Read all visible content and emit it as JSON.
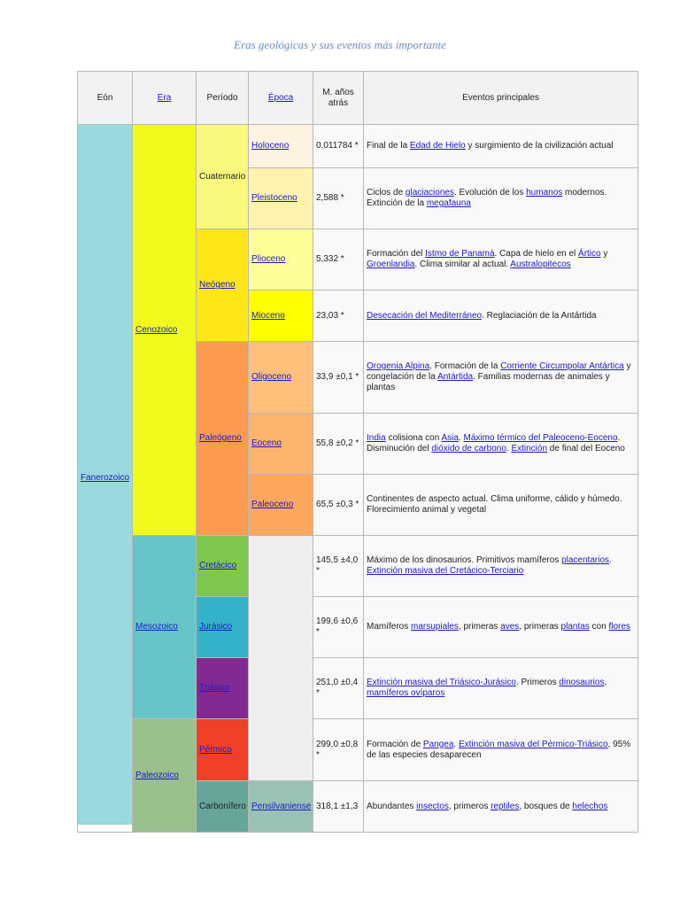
{
  "title": "Eras geológicas y sus eventos más importante",
  "header": [
    {
      "text": "Eón"
    },
    {
      "text": "Era",
      "link": true
    },
    {
      "text": "Período"
    },
    {
      "text": "Época",
      "link": true
    },
    {
      "text": "M. años atrás"
    },
    {
      "text": "Eventos principales"
    }
  ],
  "eon": {
    "name": "Fanerozoico",
    "link": true,
    "color": "#9ad9dd"
  },
  "eras": [
    {
      "name": "Cenozoico",
      "link": true,
      "color": "#f2f91d"
    },
    {
      "name": "Mesozoico",
      "link": true,
      "color": "#67c5ca"
    },
    {
      "name": "Paleozoico",
      "link": true,
      "color": "#99c08d"
    }
  ],
  "periods": [
    {
      "name": "Cuaternario",
      "color": "#f9f97f"
    },
    {
      "name": "Neógeno",
      "link": true,
      "color": "#ffe619"
    },
    {
      "name": "Paleógeno",
      "link": true,
      "color": "#fd9a52"
    },
    {
      "name": "Cretácico",
      "link": true,
      "color": "#7fc64e"
    },
    {
      "name": "Jurásico",
      "link": true,
      "color": "#34b2c9"
    },
    {
      "name": "Triásico",
      "link": true,
      "color": "#812b92"
    },
    {
      "name": "Pérmico",
      "link": true,
      "color": "#f04028"
    },
    {
      "name": "Carbonífero",
      "color": "#67a599"
    }
  ],
  "epochs": [
    {
      "name": "Holoceno",
      "link": true,
      "color": "#fef2e0"
    },
    {
      "name": "Pleistoceno",
      "link": true,
      "color": "#fff2ae"
    },
    {
      "name": "Plioceno",
      "link": true,
      "color": "#ffff99"
    },
    {
      "name": "Mioceno",
      "link": true,
      "color": "#ffff00"
    },
    {
      "name": "Oligoceno",
      "link": true,
      "color": "#fec07a"
    },
    {
      "name": "Eoceno",
      "link": true,
      "color": "#fdb46c"
    },
    {
      "name": "Paleoceno",
      "link": true,
      "color": "#fda75f"
    },
    {
      "name": "Pensilvaniense",
      "link": true,
      "color": "#99c2b5"
    }
  ],
  "rows": [
    {
      "age": "0,011784 *",
      "events": [
        {
          "t": "Final de la "
        },
        {
          "a": "Edad de Hielo"
        },
        {
          "t": " y surgimiento de la civilización actual"
        }
      ]
    },
    {
      "age": "2,588 *",
      "events": [
        {
          "t": "Ciclos de "
        },
        {
          "a": "glaciaciones"
        },
        {
          "t": ". Evolución de los "
        },
        {
          "a": "humanos"
        },
        {
          "t": " modernos. Extinción de la "
        },
        {
          "a": "megafauna"
        }
      ]
    },
    {
      "age": "5,332 *",
      "events": [
        {
          "t": "Formación del "
        },
        {
          "a": "Istmo de Panamá"
        },
        {
          "t": ". Capa de hielo en el "
        },
        {
          "a": "Ártico"
        },
        {
          "t": " y "
        },
        {
          "a": "Groenlandia"
        },
        {
          "t": ". Clima similar al actual. "
        },
        {
          "a": "Australopitecos"
        }
      ]
    },
    {
      "age": "23,03 *",
      "events": [
        {
          "a": "Desecación del Mediterráneo"
        },
        {
          "t": ". Reglaciación de la Antártida"
        }
      ]
    },
    {
      "age": "33,9 ±0,1 *",
      "events": [
        {
          "a": "Orogenia Alpina"
        },
        {
          "t": ". Formación de la "
        },
        {
          "a": "Corriente Circumpolar Antártica"
        },
        {
          "t": " y congelación de la "
        },
        {
          "a": "Antártida"
        },
        {
          "t": ". Familias modernas de animales y plantas"
        }
      ]
    },
    {
      "age": "55,8 ±0,2 *",
      "events": [
        {
          "a": "India"
        },
        {
          "t": " colisiona con "
        },
        {
          "a": "Asia"
        },
        {
          "t": ". "
        },
        {
          "a": "Máximo térmico del Paleoceno-Eoceno"
        },
        {
          "t": ". Disminución del "
        },
        {
          "a": "dióxido de carbono"
        },
        {
          "t": ". "
        },
        {
          "a": "Extinción"
        },
        {
          "t": " de final del Eoceno"
        }
      ]
    },
    {
      "age": "65,5 ±0,3 *",
      "events": [
        {
          "t": "Continentes de aspecto actual. Clima uniforme, cálido y húmedo. Florecimiento animal y vegetal"
        }
      ]
    },
    {
      "age": "145,5 ±4,0 *",
      "events": [
        {
          "t": "Máximo de los dinosaurios. Primitivos mamíferos "
        },
        {
          "a": "placentarios"
        },
        {
          "t": ". "
        },
        {
          "a": "Extinción masiva del Cretácico-Terciario"
        }
      ]
    },
    {
      "age": "199,6 ±0,6 *",
      "events": [
        {
          "t": "Mamíferos "
        },
        {
          "a": "marsupiales"
        },
        {
          "t": ", primeras "
        },
        {
          "a": "aves"
        },
        {
          "t": ", primeras "
        },
        {
          "a": "plantas"
        },
        {
          "t": " con "
        },
        {
          "a": "flores"
        }
      ]
    },
    {
      "age": "251,0 ±0,4 *",
      "events": [
        {
          "a": "Extinción masiva del Triásico-Jurásico"
        },
        {
          "t": ". Primeros "
        },
        {
          "a": "dinosaurios"
        },
        {
          "t": ", "
        },
        {
          "a": "mamíferos ovíparos"
        }
      ]
    },
    {
      "age": "299,0 ±0,8 *",
      "events": [
        {
          "t": "Formación de "
        },
        {
          "a": "Pangea"
        },
        {
          "t": ". "
        },
        {
          "a": "Extinción masiva del Pérmico-Triásico"
        },
        {
          "t": ", 95% de las especies desaparecen"
        }
      ]
    },
    {
      "age": "318,1 ±1,3",
      "events": [
        {
          "t": "Abundantes "
        },
        {
          "a": "insectos"
        },
        {
          "t": ", primeros "
        },
        {
          "a": "reptiles"
        },
        {
          "t": ", bosques de "
        },
        {
          "a": "helechos"
        }
      ]
    }
  ]
}
